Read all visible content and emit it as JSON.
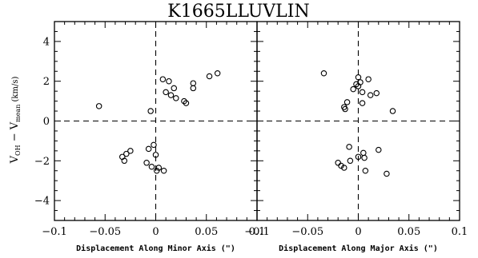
{
  "chart_data": {
    "type": "scatter",
    "title": "K1665LLUVLIN",
    "ylabel_main": "V",
    "ylabel_sub1": "OH",
    "ylabel_mid": " − V",
    "ylabel_sub2": "mean",
    "ylabel_unit": " (km/s)",
    "ylim": [
      -5,
      5
    ],
    "y_ticks": [
      "4",
      "2",
      "0",
      "−2",
      "−4"
    ],
    "reference_lines": {
      "x": 0,
      "y": 0,
      "style": "dashed"
    },
    "panels": [
      {
        "xlabel": "Displacement Along Minor Axis (\")",
        "xlim": [
          -0.1,
          0.1
        ],
        "x_tick_labels": [
          "−0.1",
          "−0.05",
          "0",
          "0.05",
          "0.1"
        ],
        "points": [
          {
            "x": -0.056,
            "y": 0.75
          },
          {
            "x": -0.005,
            "y": 0.5
          },
          {
            "x": 0.007,
            "y": 2.1
          },
          {
            "x": 0.013,
            "y": 2.0
          },
          {
            "x": 0.01,
            "y": 1.45
          },
          {
            "x": 0.015,
            "y": 1.3
          },
          {
            "x": 0.018,
            "y": 1.65
          },
          {
            "x": 0.02,
            "y": 1.15
          },
          {
            "x": 0.028,
            "y": 1.0
          },
          {
            "x": 0.03,
            "y": 0.9
          },
          {
            "x": 0.037,
            "y": 1.9
          },
          {
            "x": 0.037,
            "y": 1.65
          },
          {
            "x": 0.053,
            "y": 2.25
          },
          {
            "x": 0.061,
            "y": 2.4
          },
          {
            "x": -0.033,
            "y": -1.8
          },
          {
            "x": -0.031,
            "y": -2.0
          },
          {
            "x": -0.029,
            "y": -1.65
          },
          {
            "x": -0.025,
            "y": -1.5
          },
          {
            "x": -0.009,
            "y": -2.1
          },
          {
            "x": -0.007,
            "y": -1.4
          },
          {
            "x": -0.004,
            "y": -2.3
          },
          {
            "x": -0.002,
            "y": -1.2
          },
          {
            "x": 0.001,
            "y": -2.5
          },
          {
            "x": 0.0,
            "y": -1.7
          },
          {
            "x": 0.003,
            "y": -2.35
          },
          {
            "x": 0.008,
            "y": -2.5
          }
        ]
      },
      {
        "xlabel": "Displacement Along Major Axis (\")",
        "xlim": [
          -0.1,
          0.1
        ],
        "x_tick_labels": [
          "−0.1",
          "−0.05",
          "0",
          "0.05",
          "0.1"
        ],
        "points": [
          {
            "x": -0.034,
            "y": 2.4
          },
          {
            "x": -0.014,
            "y": 0.7
          },
          {
            "x": -0.013,
            "y": 0.6
          },
          {
            "x": -0.011,
            "y": 0.95
          },
          {
            "x": -0.005,
            "y": 1.6
          },
          {
            "x": -0.002,
            "y": 1.85
          },
          {
            "x": 0.0,
            "y": 2.2
          },
          {
            "x": 0.0,
            "y": 1.75
          },
          {
            "x": 0.002,
            "y": 1.95
          },
          {
            "x": 0.004,
            "y": 1.45
          },
          {
            "x": 0.004,
            "y": 0.9
          },
          {
            "x": 0.01,
            "y": 2.1
          },
          {
            "x": 0.012,
            "y": 1.3
          },
          {
            "x": 0.018,
            "y": 1.4
          },
          {
            "x": 0.034,
            "y": 0.5
          },
          {
            "x": -0.02,
            "y": -2.1
          },
          {
            "x": -0.017,
            "y": -2.25
          },
          {
            "x": -0.014,
            "y": -2.35
          },
          {
            "x": -0.009,
            "y": -1.3
          },
          {
            "x": -0.008,
            "y": -2.0
          },
          {
            "x": 0.0,
            "y": -1.8
          },
          {
            "x": 0.005,
            "y": -1.6
          },
          {
            "x": 0.006,
            "y": -1.85
          },
          {
            "x": 0.007,
            "y": -2.5
          },
          {
            "x": 0.02,
            "y": -1.45
          },
          {
            "x": 0.028,
            "y": -2.65
          }
        ]
      }
    ]
  }
}
